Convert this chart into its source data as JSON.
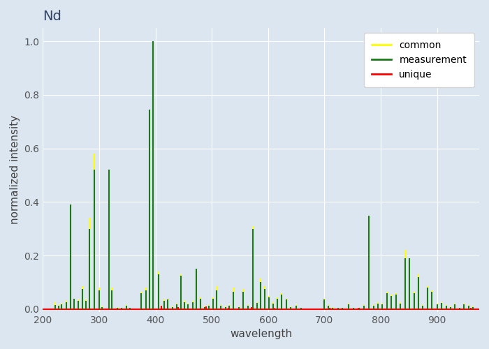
{
  "title": "Nd",
  "xlabel": "wavelength",
  "ylabel": "normalized intensity",
  "xlim": [
    200,
    975
  ],
  "ylim": [
    -0.01,
    1.05
  ],
  "background_color": "#dce6f1",
  "fig_background": "#dce6f1",
  "common_lines": [
    [
      222,
      0.025
    ],
    [
      228,
      0.015
    ],
    [
      233,
      0.02
    ],
    [
      242,
      0.03
    ],
    [
      249,
      0.39
    ],
    [
      255,
      0.04
    ],
    [
      263,
      0.035
    ],
    [
      270,
      0.085
    ],
    [
      276,
      0.035
    ],
    [
      283,
      0.34
    ],
    [
      292,
      0.58
    ],
    [
      300,
      0.08
    ],
    [
      305,
      0.01
    ],
    [
      317,
      0.52
    ],
    [
      323,
      0.08
    ],
    [
      332,
      0.008
    ],
    [
      340,
      0.005
    ],
    [
      349,
      0.015
    ],
    [
      355,
      0.005
    ],
    [
      375,
      0.065
    ],
    [
      383,
      0.08
    ],
    [
      390,
      0.745
    ],
    [
      396,
      1.0
    ],
    [
      406,
      0.14
    ],
    [
      415,
      0.035
    ],
    [
      422,
      0.04
    ],
    [
      430,
      0.01
    ],
    [
      438,
      0.02
    ],
    [
      445,
      0.13
    ],
    [
      452,
      0.03
    ],
    [
      458,
      0.02
    ],
    [
      466,
      0.03
    ],
    [
      472,
      0.15
    ],
    [
      480,
      0.045
    ],
    [
      487,
      0.01
    ],
    [
      495,
      0.015
    ],
    [
      502,
      0.045
    ],
    [
      509,
      0.085
    ],
    [
      516,
      0.015
    ],
    [
      524,
      0.01
    ],
    [
      531,
      0.015
    ],
    [
      538,
      0.08
    ],
    [
      548,
      0.01
    ],
    [
      556,
      0.075
    ],
    [
      564,
      0.015
    ],
    [
      573,
      0.31
    ],
    [
      580,
      0.025
    ],
    [
      587,
      0.115
    ],
    [
      594,
      0.085
    ],
    [
      602,
      0.05
    ],
    [
      609,
      0.025
    ],
    [
      617,
      0.045
    ],
    [
      624,
      0.06
    ],
    [
      633,
      0.04
    ],
    [
      640,
      0.01
    ],
    [
      650,
      0.015
    ],
    [
      659,
      0.005
    ],
    [
      700,
      0.04
    ],
    [
      707,
      0.015
    ],
    [
      715,
      0.008
    ],
    [
      724,
      0.005
    ],
    [
      732,
      0.005
    ],
    [
      743,
      0.02
    ],
    [
      751,
      0.005
    ],
    [
      762,
      0.005
    ],
    [
      770,
      0.015
    ],
    [
      779,
      0.35
    ],
    [
      787,
      0.015
    ],
    [
      795,
      0.025
    ],
    [
      803,
      0.02
    ],
    [
      811,
      0.065
    ],
    [
      819,
      0.055
    ],
    [
      827,
      0.06
    ],
    [
      835,
      0.025
    ],
    [
      843,
      0.22
    ],
    [
      851,
      0.19
    ],
    [
      859,
      0.065
    ],
    [
      867,
      0.13
    ],
    [
      875,
      0.015
    ],
    [
      883,
      0.085
    ],
    [
      891,
      0.07
    ],
    [
      900,
      0.02
    ],
    [
      908,
      0.025
    ],
    [
      916,
      0.015
    ],
    [
      924,
      0.01
    ],
    [
      932,
      0.02
    ],
    [
      940,
      0.005
    ],
    [
      948,
      0.02
    ],
    [
      956,
      0.015
    ],
    [
      964,
      0.01
    ]
  ],
  "measurement_lines": [
    [
      222,
      0.015
    ],
    [
      228,
      0.012
    ],
    [
      233,
      0.018
    ],
    [
      242,
      0.025
    ],
    [
      249,
      0.39
    ],
    [
      255,
      0.038
    ],
    [
      263,
      0.03
    ],
    [
      270,
      0.075
    ],
    [
      276,
      0.032
    ],
    [
      283,
      0.3
    ],
    [
      292,
      0.52
    ],
    [
      300,
      0.07
    ],
    [
      305,
      0.008
    ],
    [
      317,
      0.52
    ],
    [
      323,
      0.07
    ],
    [
      332,
      0.006
    ],
    [
      340,
      0.004
    ],
    [
      349,
      0.012
    ],
    [
      355,
      0.004
    ],
    [
      375,
      0.06
    ],
    [
      383,
      0.07
    ],
    [
      390,
      0.745
    ],
    [
      396,
      1.0
    ],
    [
      406,
      0.13
    ],
    [
      415,
      0.03
    ],
    [
      422,
      0.035
    ],
    [
      430,
      0.008
    ],
    [
      438,
      0.018
    ],
    [
      445,
      0.125
    ],
    [
      452,
      0.025
    ],
    [
      458,
      0.018
    ],
    [
      466,
      0.025
    ],
    [
      472,
      0.15
    ],
    [
      480,
      0.04
    ],
    [
      487,
      0.008
    ],
    [
      495,
      0.012
    ],
    [
      502,
      0.04
    ],
    [
      509,
      0.07
    ],
    [
      516,
      0.012
    ],
    [
      524,
      0.008
    ],
    [
      531,
      0.012
    ],
    [
      538,
      0.065
    ],
    [
      548,
      0.008
    ],
    [
      556,
      0.065
    ],
    [
      564,
      0.012
    ],
    [
      573,
      0.3
    ],
    [
      580,
      0.022
    ],
    [
      587,
      0.1
    ],
    [
      594,
      0.075
    ],
    [
      602,
      0.045
    ],
    [
      609,
      0.02
    ],
    [
      617,
      0.04
    ],
    [
      624,
      0.055
    ],
    [
      633,
      0.035
    ],
    [
      640,
      0.008
    ],
    [
      650,
      0.012
    ],
    [
      659,
      0.004
    ],
    [
      700,
      0.035
    ],
    [
      707,
      0.012
    ],
    [
      715,
      0.006
    ],
    [
      724,
      0.004
    ],
    [
      732,
      0.004
    ],
    [
      743,
      0.018
    ],
    [
      751,
      0.004
    ],
    [
      762,
      0.004
    ],
    [
      770,
      0.012
    ],
    [
      779,
      0.35
    ],
    [
      787,
      0.012
    ],
    [
      795,
      0.02
    ],
    [
      803,
      0.018
    ],
    [
      811,
      0.06
    ],
    [
      819,
      0.05
    ],
    [
      827,
      0.055
    ],
    [
      835,
      0.02
    ],
    [
      843,
      0.19
    ],
    [
      851,
      0.19
    ],
    [
      859,
      0.06
    ],
    [
      867,
      0.12
    ],
    [
      875,
      0.012
    ],
    [
      883,
      0.08
    ],
    [
      891,
      0.065
    ],
    [
      900,
      0.018
    ],
    [
      908,
      0.022
    ],
    [
      916,
      0.012
    ],
    [
      924,
      0.008
    ],
    [
      932,
      0.018
    ],
    [
      940,
      0.004
    ],
    [
      948,
      0.018
    ],
    [
      956,
      0.012
    ],
    [
      964,
      0.008
    ]
  ],
  "unique_lines": [
    [
      410,
      0.012
    ],
    [
      440,
      0.008
    ],
    [
      490,
      0.01
    ],
    [
      530,
      0.005
    ],
    [
      570,
      0.007
    ],
    [
      610,
      0.004
    ],
    [
      655,
      0.003
    ],
    [
      710,
      0.005
    ],
    [
      760,
      0.004
    ],
    [
      800,
      0.003
    ],
    [
      910,
      0.003
    ],
    [
      960,
      0.004
    ]
  ],
  "unique_baseline_x": [
    200,
    975
  ],
  "unique_baseline_y": 0.005,
  "lw_common": 1.5,
  "lw_measurement": 1.5,
  "lw_unique": 1.5,
  "color_common": "yellow",
  "color_measurement": "#1a7a1a",
  "color_unique": "red"
}
